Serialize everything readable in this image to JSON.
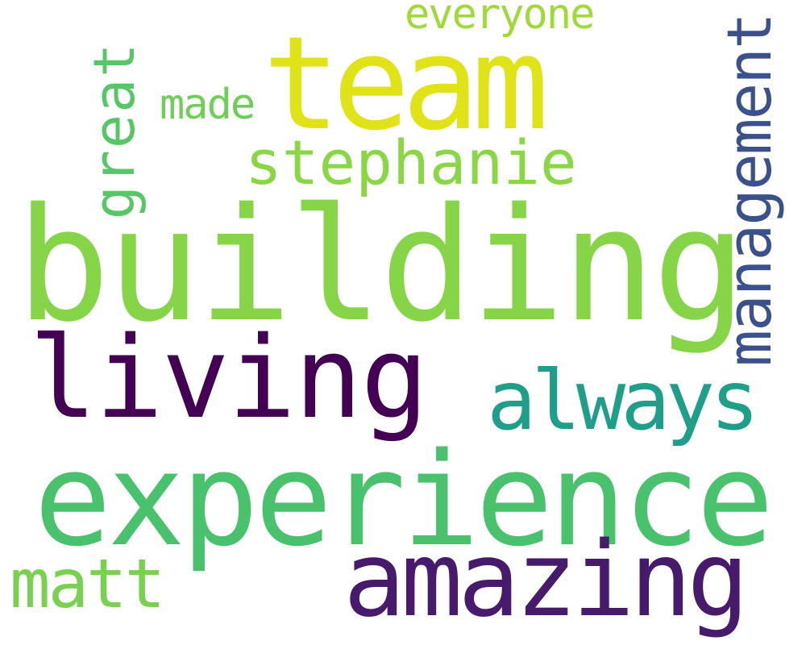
{
  "words": {
    "building": {
      "text": "building",
      "color": "#86d549"
    },
    "experience": {
      "text": "experience",
      "color": "#4ac16d"
    },
    "team": {
      "text": "team",
      "color": "#dfe318"
    },
    "living": {
      "text": "living",
      "color": "#440154"
    },
    "amazing": {
      "text": "amazing",
      "color": "#481a6c"
    },
    "always": {
      "text": "always",
      "color": "#1f9e89"
    },
    "stephanie": {
      "text": "stephanie",
      "color": "#8bd646"
    },
    "management": {
      "text": "management",
      "color": "#3b518b"
    },
    "great": {
      "text": "great",
      "color": "#56c667"
    },
    "matt": {
      "text": "matt",
      "color": "#7ad151"
    },
    "made": {
      "text": "made",
      "color": "#6ece58"
    },
    "everyone": {
      "text": "everyone",
      "color": "#9fda3a"
    }
  }
}
